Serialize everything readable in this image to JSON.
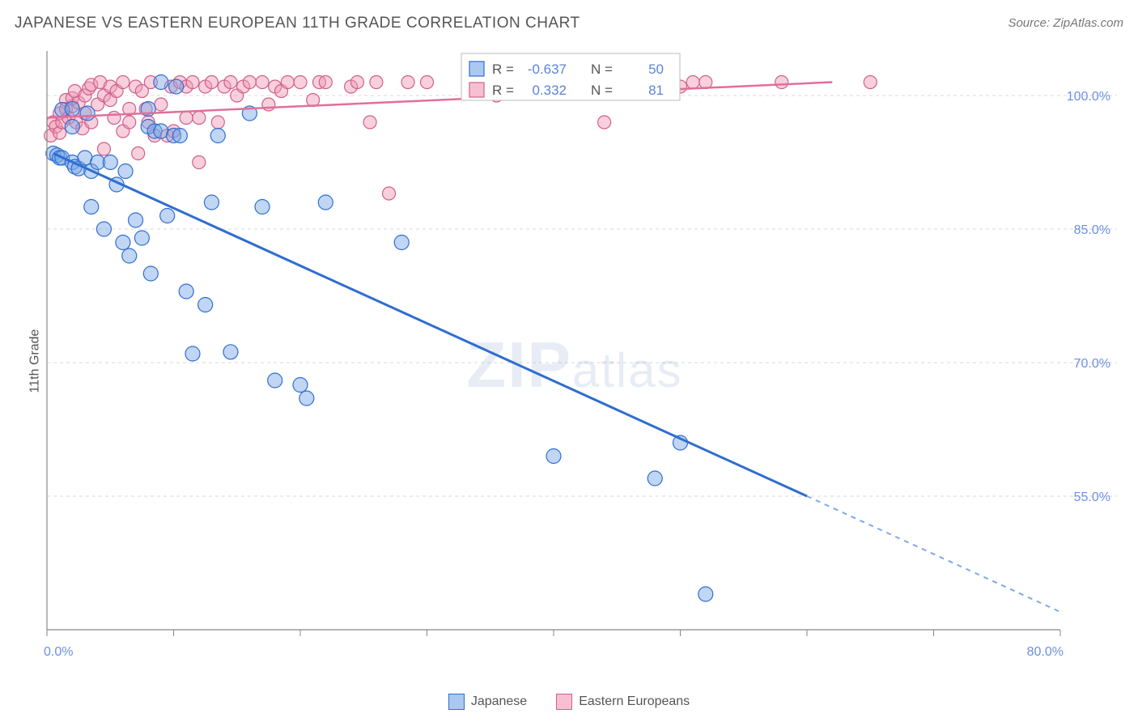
{
  "header": {
    "title": "JAPANESE VS EASTERN EUROPEAN 11TH GRADE CORRELATION CHART",
    "source": "Source: ZipAtlas.com"
  },
  "y_axis_label": "11th Grade",
  "watermark_main": "ZIP",
  "watermark_sub": "atlas",
  "chart": {
    "type": "scatter",
    "xlim": [
      0,
      80
    ],
    "ylim": [
      40,
      105
    ],
    "x_ticks": [
      0,
      10,
      20,
      30,
      40,
      50,
      60,
      70,
      80
    ],
    "x_tick_labels": {
      "0": "0.0%",
      "80": "80.0%"
    },
    "y_ticks": [
      55,
      70,
      85,
      100
    ],
    "y_tick_labels": {
      "55": "55.0%",
      "70": "70.0%",
      "85": "85.0%",
      "100": "100.0%"
    },
    "background_color": "#ffffff",
    "grid_color": "#d8d8d8",
    "axis_color": "#888888",
    "series": [
      {
        "name": "Japanese",
        "color_fill": "rgba(115,165,230,0.45)",
        "color_stroke": "#2f6dd0",
        "marker_radius": 9,
        "R": "-0.637",
        "N": "50",
        "trend": {
          "x1": 0.5,
          "y1": 93.5,
          "x2": 60,
          "y2": 55,
          "extend_x2": 80,
          "extend_y2": 42
        },
        "points": [
          [
            0.5,
            93.5
          ],
          [
            0.8,
            93.3
          ],
          [
            1.0,
            93.0
          ],
          [
            1.2,
            93.0
          ],
          [
            1.2,
            98.4
          ],
          [
            2,
            98.5
          ],
          [
            2,
            96.5
          ],
          [
            2,
            92.5
          ],
          [
            2.2,
            92.0
          ],
          [
            2.5,
            91.8
          ],
          [
            3,
            93.0
          ],
          [
            3.2,
            98.0
          ],
          [
            3.5,
            91.5
          ],
          [
            3.5,
            87.5
          ],
          [
            4,
            92.5
          ],
          [
            4.5,
            85.0
          ],
          [
            5,
            92.5
          ],
          [
            5.5,
            90.0
          ],
          [
            6,
            83.5
          ],
          [
            6.2,
            91.5
          ],
          [
            6.5,
            82.0
          ],
          [
            7,
            86.0
          ],
          [
            7.5,
            84.0
          ],
          [
            8,
            96.5
          ],
          [
            8,
            98.5
          ],
          [
            8.2,
            80.0
          ],
          [
            8.5,
            96.0
          ],
          [
            9,
            96.0
          ],
          [
            9,
            101.5
          ],
          [
            9.5,
            86.5
          ],
          [
            10,
            95.5
          ],
          [
            10.2,
            101.0
          ],
          [
            10.5,
            95.5
          ],
          [
            11,
            78.0
          ],
          [
            11.5,
            71.0
          ],
          [
            12.5,
            76.5
          ],
          [
            13,
            88.0
          ],
          [
            13.5,
            95.5
          ],
          [
            14.5,
            71.2
          ],
          [
            16,
            98.0
          ],
          [
            17,
            87.5
          ],
          [
            18,
            68.0
          ],
          [
            20,
            67.5
          ],
          [
            20.5,
            66.0
          ],
          [
            22,
            88.0
          ],
          [
            28,
            83.5
          ],
          [
            40,
            59.5
          ],
          [
            48,
            57.0
          ],
          [
            50,
            61.0
          ],
          [
            52,
            44.0
          ]
        ]
      },
      {
        "name": "Eastern Europeans",
        "color_fill": "rgba(240,150,180,0.45)",
        "color_stroke": "#d05f8a",
        "marker_radius": 8,
        "R": "0.332",
        "N": "81",
        "trend": {
          "x1": 0,
          "y1": 97.5,
          "x2": 62,
          "y2": 101.5
        },
        "points": [
          [
            0.3,
            95.5
          ],
          [
            0.5,
            97.0
          ],
          [
            0.7,
            96.5
          ],
          [
            1,
            95.8
          ],
          [
            1,
            98.0
          ],
          [
            1.2,
            97.0
          ],
          [
            1.5,
            98.5
          ],
          [
            1.5,
            99.5
          ],
          [
            1.7,
            97.5
          ],
          [
            2,
            98.8
          ],
          [
            2,
            99.7
          ],
          [
            2.2,
            100.5
          ],
          [
            2.3,
            97.0
          ],
          [
            2.5,
            99.2
          ],
          [
            2.8,
            96.3
          ],
          [
            3,
            100.0
          ],
          [
            3,
            98.0
          ],
          [
            3.3,
            100.8
          ],
          [
            3.5,
            97.0
          ],
          [
            3.5,
            101.2
          ],
          [
            4,
            99.0
          ],
          [
            4.2,
            101.5
          ],
          [
            4.5,
            94.0
          ],
          [
            4.5,
            100.0
          ],
          [
            5,
            99.5
          ],
          [
            5,
            101.0
          ],
          [
            5.3,
            97.5
          ],
          [
            5.5,
            100.5
          ],
          [
            6,
            96.0
          ],
          [
            6,
            101.5
          ],
          [
            6.5,
            97.0
          ],
          [
            6.5,
            98.5
          ],
          [
            7,
            101.0
          ],
          [
            7.2,
            93.5
          ],
          [
            7.5,
            100.5
          ],
          [
            7.8,
            98.5
          ],
          [
            8,
            97.0
          ],
          [
            8.2,
            101.5
          ],
          [
            8.5,
            95.5
          ],
          [
            9,
            99.0
          ],
          [
            9.5,
            95.5
          ],
          [
            9.8,
            101.0
          ],
          [
            10,
            96.0
          ],
          [
            10.5,
            101.5
          ],
          [
            11,
            97.5
          ],
          [
            11,
            101.0
          ],
          [
            11.5,
            101.5
          ],
          [
            12,
            92.5
          ],
          [
            12,
            97.5
          ],
          [
            12.5,
            101.0
          ],
          [
            13,
            101.5
          ],
          [
            13.5,
            97.0
          ],
          [
            14,
            101.0
          ],
          [
            14.5,
            101.5
          ],
          [
            15,
            100.0
          ],
          [
            15.5,
            101.0
          ],
          [
            16,
            101.5
          ],
          [
            17,
            101.5
          ],
          [
            17.5,
            99.0
          ],
          [
            18,
            101.0
          ],
          [
            18.5,
            100.5
          ],
          [
            19,
            101.5
          ],
          [
            20,
            101.5
          ],
          [
            21,
            99.5
          ],
          [
            21.5,
            101.5
          ],
          [
            22,
            101.5
          ],
          [
            24,
            101.0
          ],
          [
            24.5,
            101.5
          ],
          [
            25.5,
            97.0
          ],
          [
            26,
            101.5
          ],
          [
            27,
            89.0
          ],
          [
            28.5,
            101.5
          ],
          [
            30,
            101.5
          ],
          [
            35.5,
            100.0
          ],
          [
            36,
            101.5
          ],
          [
            44,
            97.0
          ],
          [
            50,
            101.0
          ],
          [
            51,
            101.5
          ],
          [
            52,
            101.5
          ],
          [
            58,
            101.5
          ],
          [
            65,
            101.5
          ]
        ]
      }
    ]
  },
  "stats_box": {
    "rows": [
      {
        "swatch_fill": "rgba(115,165,230,0.6)",
        "swatch_stroke": "#2f6dd0",
        "r_label": "R =",
        "r_val": "-0.637",
        "n_label": "N =",
        "n_val": "50"
      },
      {
        "swatch_fill": "rgba(240,150,180,0.6)",
        "swatch_stroke": "#d05f8a",
        "r_label": "R =",
        "r_val": "0.332",
        "n_label": "N =",
        "n_val": "81"
      }
    ]
  },
  "bottom_legend": {
    "items": [
      {
        "label": "Japanese",
        "fill": "rgba(115,165,230,0.6)",
        "stroke": "#2f6dd0"
      },
      {
        "label": "Eastern Europeans",
        "fill": "rgba(240,150,180,0.6)",
        "stroke": "#d05f8a"
      }
    ]
  }
}
